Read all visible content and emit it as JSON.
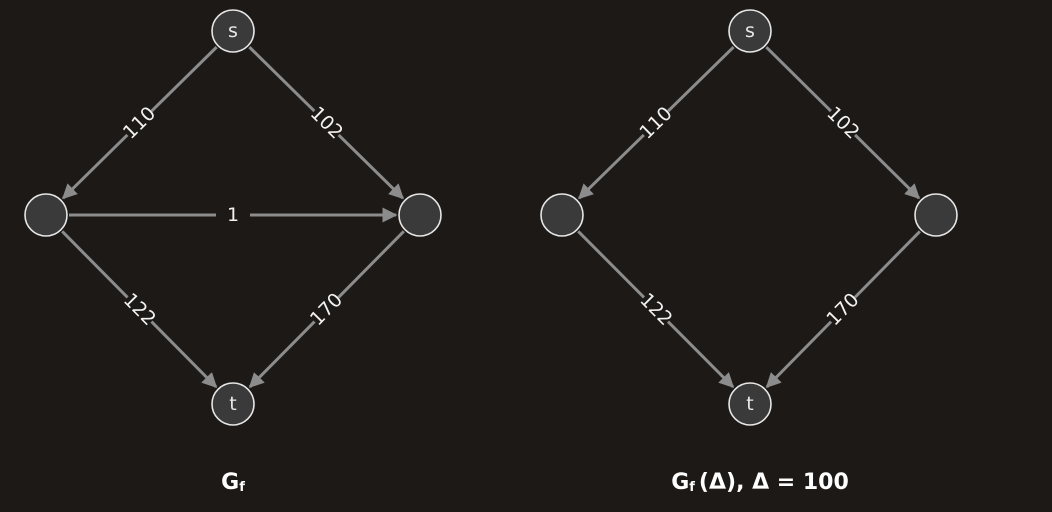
{
  "graphs": [
    {
      "caption": {
        "main": "G",
        "sub": "f",
        "rest": ""
      },
      "nodes": [
        {
          "id": "s",
          "label": "s"
        },
        {
          "id": "a",
          "label": ""
        },
        {
          "id": "b",
          "label": ""
        },
        {
          "id": "t",
          "label": "t"
        }
      ],
      "edges": [
        {
          "from": "s",
          "to": "a",
          "label": "110"
        },
        {
          "from": "s",
          "to": "b",
          "label": "102"
        },
        {
          "from": "a",
          "to": "b",
          "label": "1"
        },
        {
          "from": "a",
          "to": "t",
          "label": "122"
        },
        {
          "from": "b",
          "to": "t",
          "label": "170"
        }
      ]
    },
    {
      "caption": {
        "main": "G",
        "sub": "f",
        "rest": "(Δ),  Δ = 100"
      },
      "nodes": [
        {
          "id": "s",
          "label": "s"
        },
        {
          "id": "a",
          "label": ""
        },
        {
          "id": "b",
          "label": ""
        },
        {
          "id": "t",
          "label": "t"
        }
      ],
      "edges": [
        {
          "from": "s",
          "to": "a",
          "label": "110"
        },
        {
          "from": "s",
          "to": "b",
          "label": "102"
        },
        {
          "from": "a",
          "to": "t",
          "label": "122"
        },
        {
          "from": "b",
          "to": "t",
          "label": "170"
        }
      ]
    }
  ],
  "colors": {
    "background": "#1c1917",
    "edge": "#8c8c8c",
    "node_fill": "#3a3a3a",
    "node_stroke": "#e6e6e6",
    "text": "#ffffff"
  }
}
